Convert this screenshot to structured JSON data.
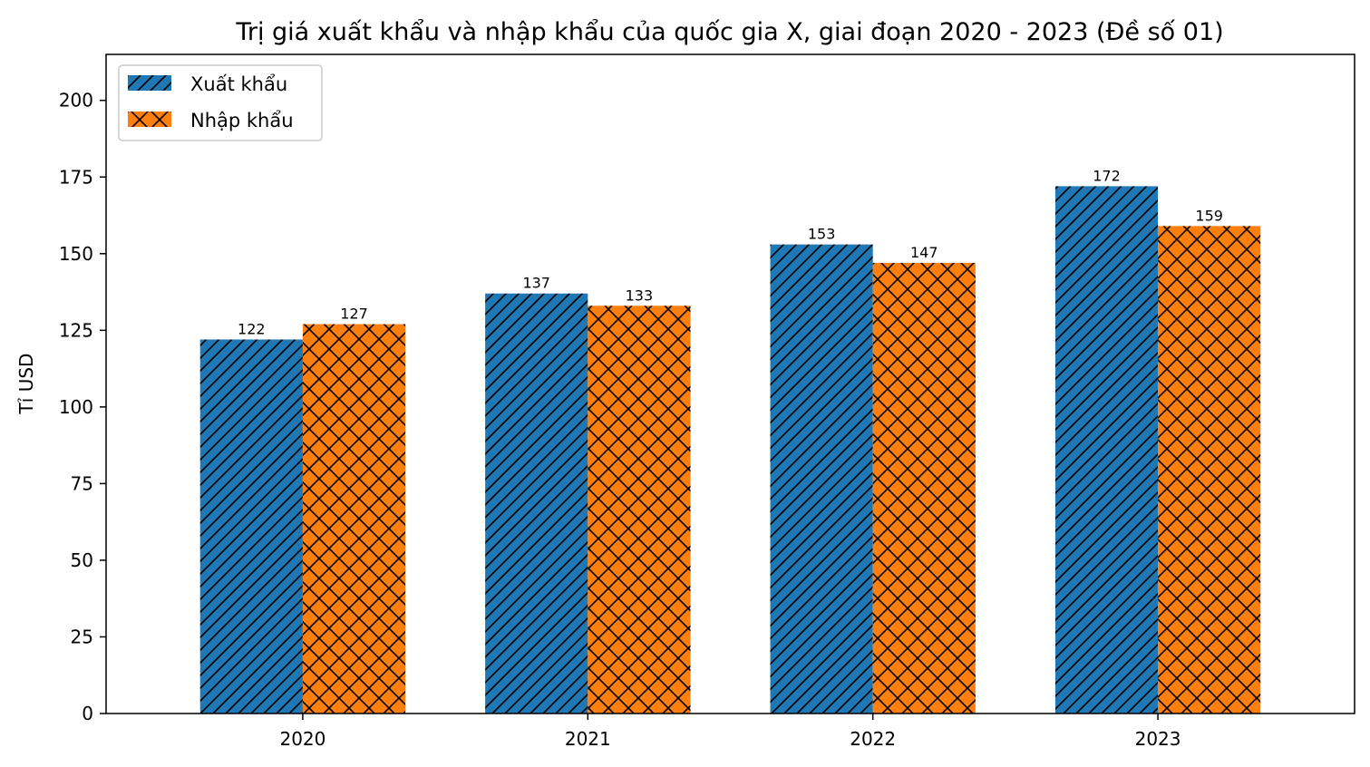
{
  "chart_data": {
    "type": "bar",
    "title": "Trị giá xuất khẩu và nhập khẩu của quốc gia X, giai đoạn 2020 - 2023 (Đề số 01)",
    "xlabel": "",
    "ylabel": "Tỉ USD",
    "categories": [
      "2020",
      "2021",
      "2022",
      "2023"
    ],
    "series": [
      {
        "name": "Xuất khẩu",
        "values": [
          122,
          137,
          153,
          172
        ],
        "color": "#1f77b4",
        "hatch": "diagonal"
      },
      {
        "name": "Nhập khẩu",
        "values": [
          127,
          133,
          147,
          159
        ],
        "color": "#ff7f0e",
        "hatch": "cross"
      }
    ],
    "ylim": [
      0,
      215
    ],
    "yticks": [
      0,
      25,
      50,
      75,
      100,
      125,
      150,
      175,
      200
    ],
    "grid": false,
    "legend_position": "top-left"
  }
}
